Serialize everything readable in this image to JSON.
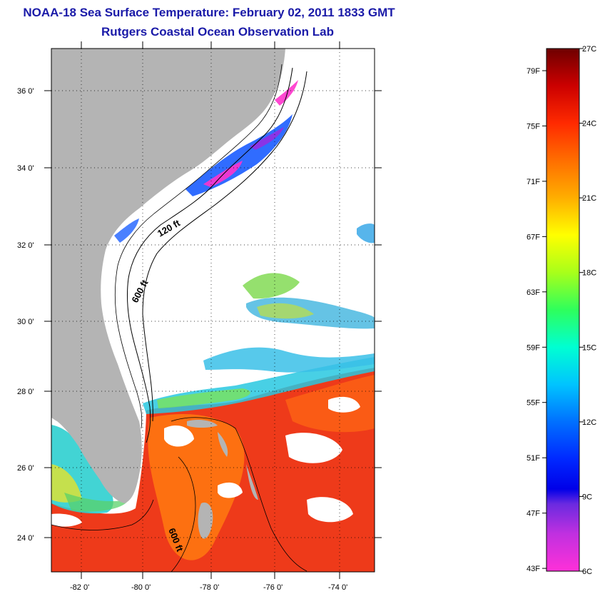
{
  "title": {
    "line1": "NOAA-18 Sea Surface Temperature:  February 02, 2011 1833 GMT",
    "line2": "Rutgers Coastal Ocean Observation Lab"
  },
  "colors": {
    "title": "#1a1aa8",
    "land": "#b4b4b4",
    "cloud": "#ffffff",
    "warm_sst": "#ee3a1a",
    "cold_sst_blue": "#1a5cff",
    "cold_sst_magenta": "#ff33cc"
  },
  "map": {
    "lon_range": [
      -83,
      -73
    ],
    "lat_range": [
      23,
      37
    ],
    "lat_labels": [
      "36 0'",
      "34 0'",
      "32 0'",
      "30 0'",
      "28 0'",
      "26 0'",
      "24 0'"
    ],
    "lon_labels": [
      "-82 0'",
      "-80 0'",
      "-78 0'",
      "-76 0'",
      "-74 0'"
    ],
    "contour_labels": [
      "120 ft",
      "600 ft",
      "600 ft"
    ],
    "grid": "dotted"
  },
  "colorbar": {
    "min_c": 6,
    "max_c": 27,
    "fahrenheit_labels": [
      "79F",
      "75F",
      "71F",
      "67F",
      "63F",
      "59F",
      "55F",
      "51F",
      "47F",
      "43F"
    ],
    "fahrenheit_values": [
      79,
      75,
      71,
      67,
      63,
      59,
      55,
      51,
      47,
      43
    ],
    "celsius_labels": [
      "27C",
      "24C",
      "21C",
      "18C",
      "15C",
      "12C",
      "9C",
      "6C"
    ],
    "celsius_values": [
      27,
      24,
      21,
      18,
      15,
      12,
      9,
      6
    ],
    "stops": [
      {
        "c": 27,
        "color": "#6e0000"
      },
      {
        "c": 25.5,
        "color": "#cc0000"
      },
      {
        "c": 24,
        "color": "#ff2a00"
      },
      {
        "c": 22.5,
        "color": "#ff6e00"
      },
      {
        "c": 21,
        "color": "#ffae00"
      },
      {
        "c": 19.5,
        "color": "#ffff00"
      },
      {
        "c": 18,
        "color": "#a8ff1a"
      },
      {
        "c": 16.5,
        "color": "#2eff5c"
      },
      {
        "c": 15,
        "color": "#00ffd2"
      },
      {
        "c": 13.5,
        "color": "#00c4ff"
      },
      {
        "c": 12,
        "color": "#0070ff"
      },
      {
        "c": 10.5,
        "color": "#0028ff"
      },
      {
        "c": 9.3,
        "color": "#0000e8"
      },
      {
        "c": 8.7,
        "color": "#6a2ae0"
      },
      {
        "c": 7.5,
        "color": "#c030e0"
      },
      {
        "c": 6,
        "color": "#ff30d8"
      }
    ]
  }
}
